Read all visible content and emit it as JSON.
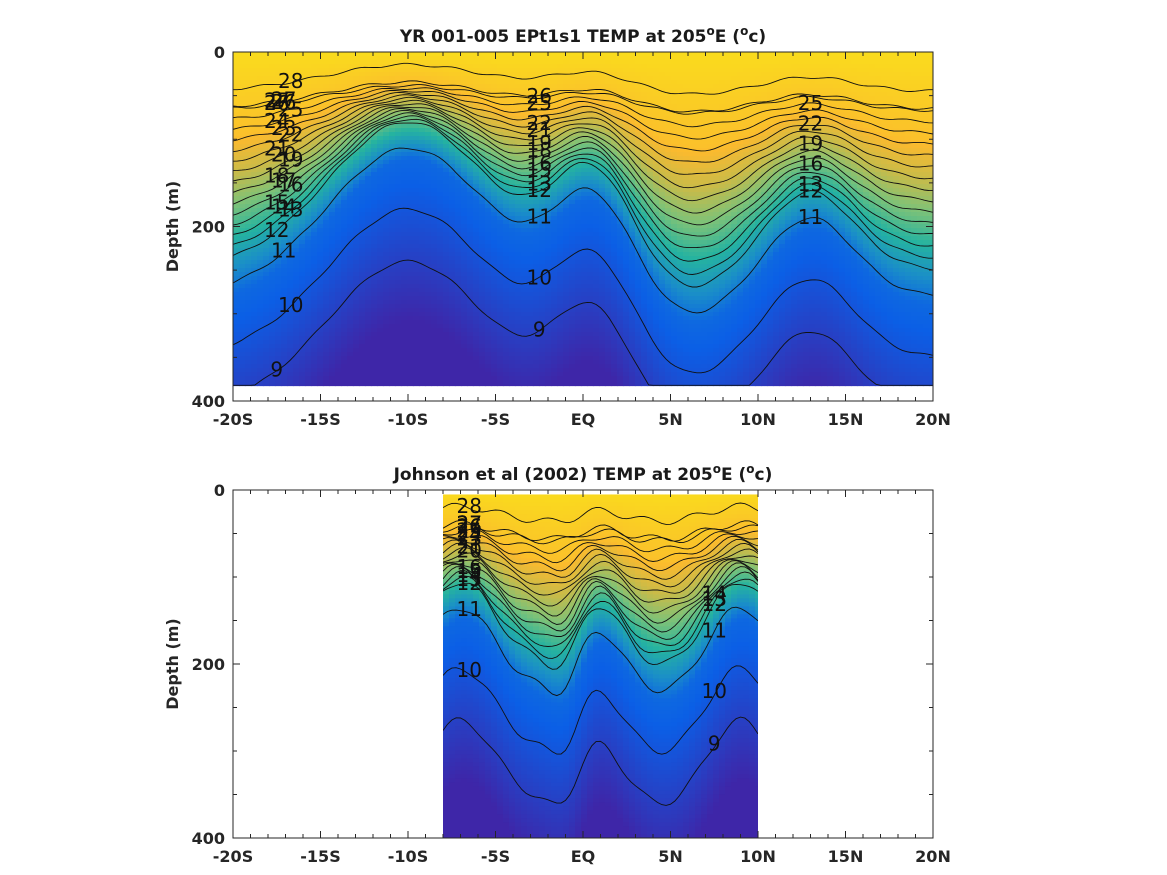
{
  "chart_data": [
    {
      "type": "heatmap",
      "title_prefix": "YR 001-005 EPt1s1 TEMP at 205",
      "title_suffix": "E (",
      "title_unit_sup": "o",
      "title_unit": "c)",
      "ylabel": "Depth (m)",
      "xlabel": "",
      "x_ticks": [
        "-20S",
        "-15S",
        "-10S",
        "-5S",
        "EQ",
        "5N",
        "10N",
        "15N",
        "20N"
      ],
      "x_tick_values": [
        -20,
        -15,
        -10,
        -5,
        0,
        5,
        10,
        15,
        20
      ],
      "y_ticks": [
        "0",
        "200",
        "400"
      ],
      "y_tick_values": [
        0,
        200,
        400
      ],
      "xlim": [
        -20,
        20
      ],
      "ylim": [
        400,
        0
      ],
      "data_extent": {
        "x": [
          -20,
          20
        ],
        "depth": [
          0,
          383
        ]
      },
      "colormap": [
        "#3e26a8",
        "#0b5fe6",
        "#1a8ec8",
        "#25b3a0",
        "#7dc278",
        "#cabb48",
        "#fbba2e",
        "#f9e518"
      ],
      "surface_temp": 28.5,
      "contour_levels": [
        9,
        10,
        11,
        12,
        13,
        14,
        15,
        16,
        17,
        18,
        19,
        20,
        21,
        22,
        23,
        24,
        25,
        26,
        27,
        28
      ],
      "contour_labels": [
        "26",
        "27",
        "28",
        "27",
        "26",
        "25",
        "24",
        "23",
        "22",
        "21",
        "20",
        "19",
        "18",
        "17",
        "16",
        "15",
        "14",
        "13",
        "12",
        "11",
        "10",
        "9",
        "26",
        "25",
        "22",
        "21",
        "19",
        "18",
        "16",
        "15",
        "13",
        "12",
        "11",
        "10",
        "9",
        "11",
        "12",
        "13",
        "16",
        "19",
        "22",
        "25"
      ]
    },
    {
      "type": "heatmap",
      "title_prefix": "Johnson et al (2002) TEMP at 205",
      "title_suffix": "E (",
      "title_unit_sup": "o",
      "title_unit": "c)",
      "ylabel": "Depth (m)",
      "xlabel": "",
      "x_ticks": [
        "-20S",
        "-15S",
        "-10S",
        "-5S",
        "EQ",
        "5N",
        "10N",
        "15N",
        "20N"
      ],
      "x_tick_values": [
        -20,
        -15,
        -10,
        -5,
        0,
        5,
        10,
        15,
        20
      ],
      "y_ticks": [
        "0",
        "200",
        "400"
      ],
      "y_tick_values": [
        0,
        200,
        400
      ],
      "xlim": [
        -20,
        20
      ],
      "ylim": [
        400,
        0
      ],
      "data_extent": {
        "x": [
          -8,
          10
        ],
        "depth": [
          5,
          400
        ]
      },
      "colormap": [
        "#3e26a8",
        "#0b5fe6",
        "#1a8ec8",
        "#25b3a0",
        "#7dc278",
        "#cabb48",
        "#fbba2e",
        "#f9e518"
      ],
      "surface_temp": 28.5,
      "contour_levels": [
        9,
        10,
        11,
        12,
        13,
        14,
        15,
        16,
        17,
        18,
        19,
        20,
        21,
        22,
        23,
        24,
        25,
        26,
        27,
        28
      ],
      "contour_labels": [
        "28",
        "27",
        "26",
        "27",
        "26",
        "25",
        "24",
        "23",
        "21",
        "20",
        "16",
        "15",
        "14",
        "13",
        "12",
        "11",
        "10",
        "9",
        "14",
        "13",
        "12",
        "11",
        "10"
      ]
    }
  ]
}
